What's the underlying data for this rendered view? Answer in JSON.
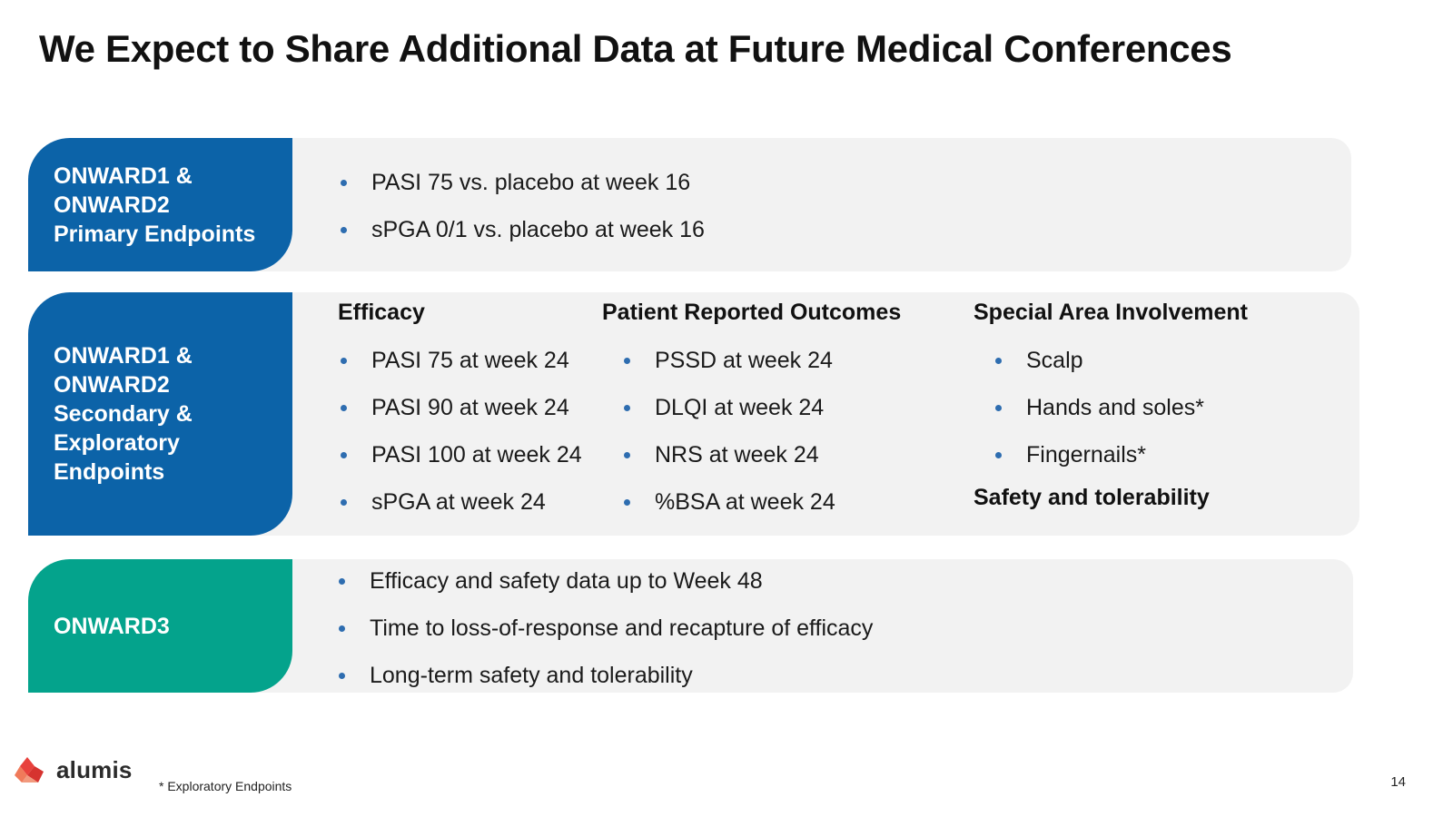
{
  "title": "We Expect to Share Additional Data at Future Medical Conferences",
  "rows": [
    {
      "label_lines": [
        "ONWARD1 &",
        "ONWARD2",
        "Primary Endpoints"
      ],
      "bullets": [
        "PASI 75 vs. placebo at week 16",
        "sPGA 0/1 vs. placebo at week 16"
      ]
    },
    {
      "label_lines": [
        "ONWARD1 &",
        "ONWARD2",
        "Secondary &",
        "Exploratory",
        "Endpoints"
      ],
      "columns": [
        {
          "heading": "Efficacy",
          "bullets": [
            "PASI 75 at week 24",
            "PASI 90 at week 24",
            "PASI 100 at week 24",
            "sPGA at week 24"
          ]
        },
        {
          "heading": "Patient Reported Outcomes",
          "bullets": [
            "PSSD at week 24",
            "DLQI at week 24",
            "NRS at week 24",
            "%BSA at week 24"
          ]
        },
        {
          "heading": "Special Area Involvement",
          "bullets": [
            "Scalp",
            "Hands and soles*",
            "Fingernails*"
          ],
          "subheading": "Safety and tolerability"
        }
      ]
    },
    {
      "label_lines": [
        "ONWARD3"
      ],
      "bullets": [
        "Efficacy and safety data up to Week 48",
        "Time to loss-of-response and recapture of efficacy",
        "Long-term safety and tolerability"
      ]
    }
  ],
  "footer": {
    "logo_text": "alumis",
    "footnote": "* Exploratory Endpoints",
    "page_number": "14"
  },
  "colors": {
    "label_blue": "#0c63a8",
    "label_teal": "#04a38c",
    "panel_bg": "#f2f2f2",
    "bullet": "#2e6db0",
    "logo_red": "#e8413c"
  }
}
